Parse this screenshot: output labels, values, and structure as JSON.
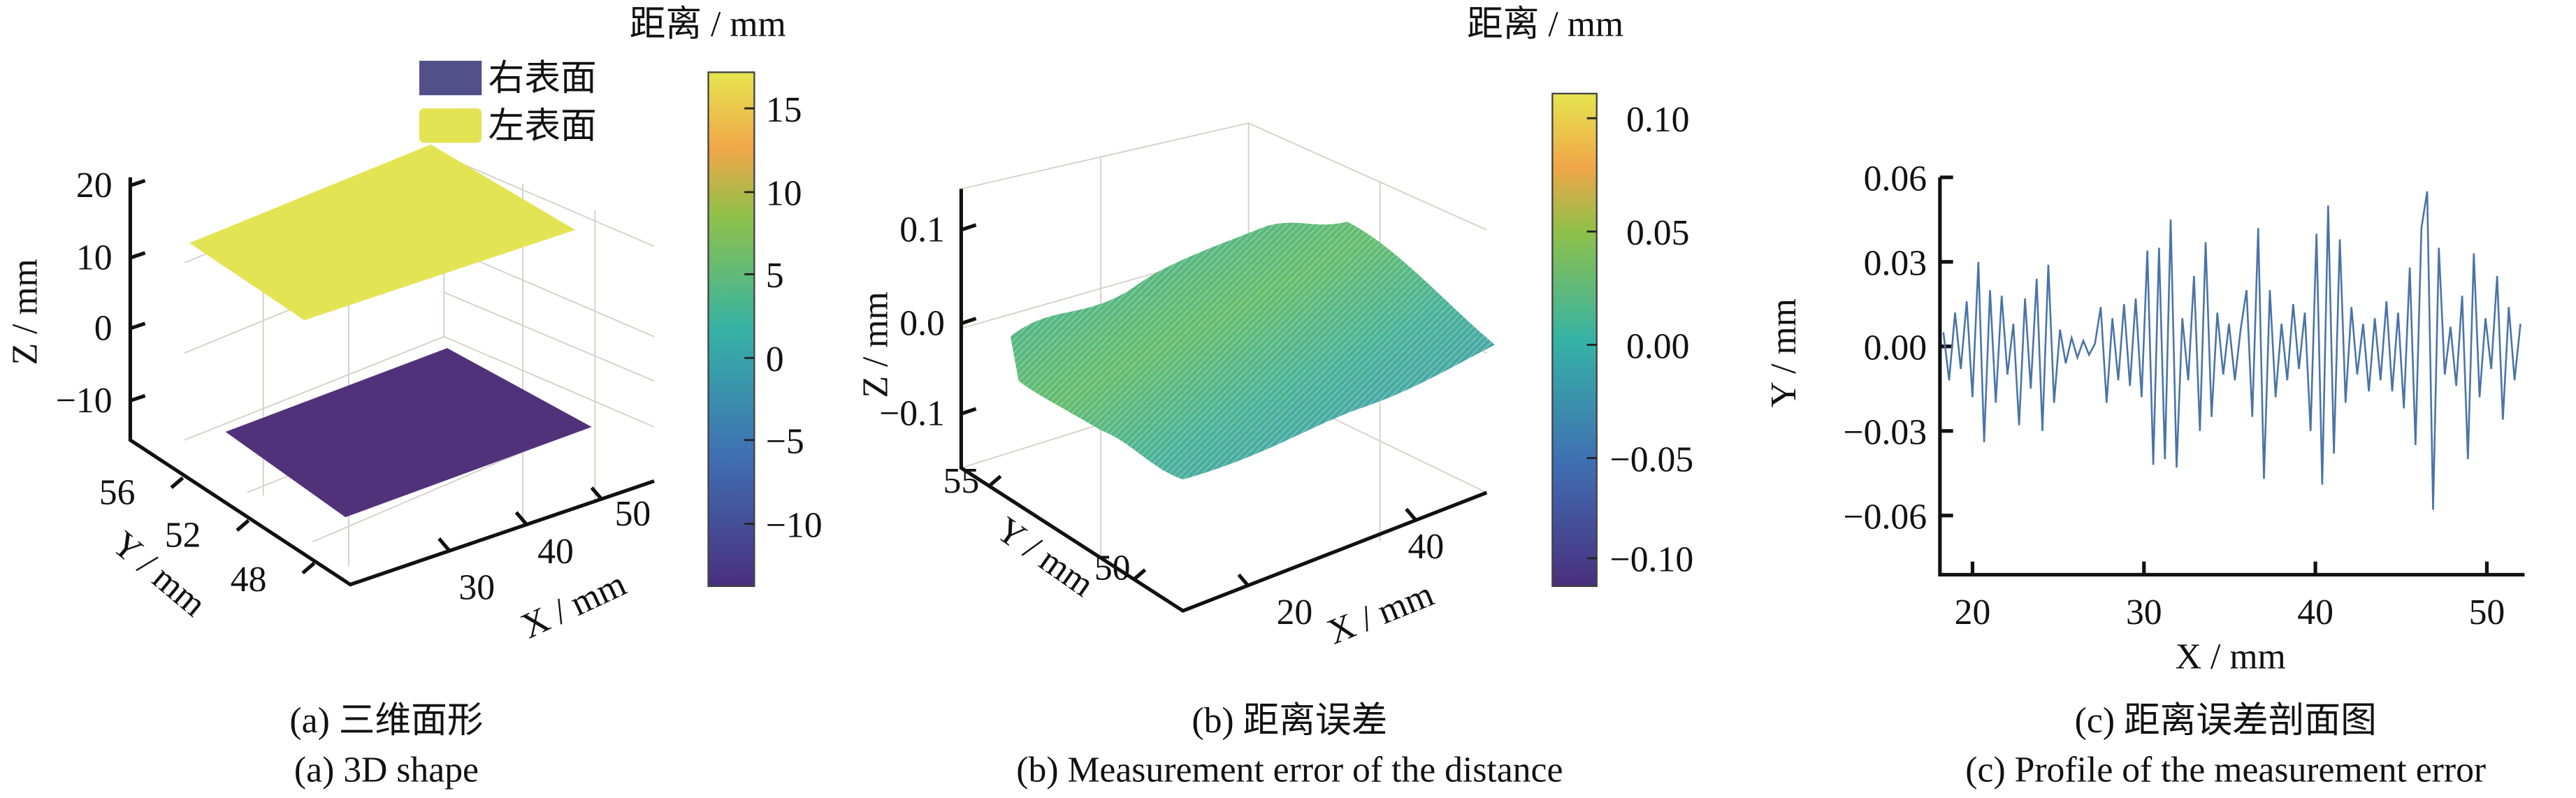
{
  "colors": {
    "right_surface": "#51327a",
    "left_surface": "#e3e453",
    "profile_line": "#4a74a8",
    "viridis": [
      "#440154",
      "#3b528b",
      "#21908d",
      "#5dc863",
      "#fde725"
    ],
    "parula": [
      "#3e26a8",
      "#2f6fe0",
      "#17b4b3",
      "#7cc94a",
      "#f5b83a",
      "#e9e330"
    ]
  },
  "chart_data": [
    {
      "type": "surface",
      "panel": "a",
      "title": "",
      "caption_cn": "(a) 三维面形",
      "caption_en": "(a) 3D shape",
      "xlabel": "X / mm",
      "ylabel": "Y / mm",
      "zlabel": "Z / mm",
      "x_ticks": [
        "30",
        "40",
        "50"
      ],
      "y_ticks": [
        "56",
        "52",
        "48"
      ],
      "z_ticks": [
        "20",
        "10",
        "0",
        "−10"
      ],
      "legend": [
        "右表面",
        "左表面"
      ],
      "legend_placement": "top-right",
      "series": [
        {
          "name": "右表面",
          "z": -12
        },
        {
          "name": "左表面",
          "z": 12
        }
      ],
      "colorbar": {
        "label": "距离 / mm",
        "ticks": [
          "15",
          "10",
          "5",
          "0",
          "−5",
          "−10"
        ],
        "range": [
          -13,
          17
        ]
      }
    },
    {
      "type": "surface",
      "panel": "b",
      "caption_cn": "(b) 距离误差",
      "caption_en": "(b) Measurement error of the distance",
      "xlabel": "X / mm",
      "ylabel": "Y / mm",
      "zlabel": "Z / mm",
      "x_ticks": [
        "20",
        "40"
      ],
      "y_ticks": [
        "55",
        "50"
      ],
      "z_ticks": [
        "0.1",
        "0.0",
        "−0.1"
      ],
      "zlim": [
        -0.12,
        0.12
      ],
      "colorbar": {
        "label": "距离 / mm",
        "ticks": [
          "0.10",
          "0.05",
          "0.00",
          "−0.05",
          "−0.10"
        ],
        "range": [
          -0.11,
          0.11
        ]
      }
    },
    {
      "type": "line",
      "panel": "c",
      "caption_cn": "(c) 距离误差剖面图",
      "caption_en": "(c) Profile of the measurement error",
      "xlabel": "X / mm",
      "ylabel": "Y / mm",
      "xlim": [
        18.1,
        52.2
      ],
      "ylim": [
        -0.081,
        0.06
      ],
      "x_ticks": [
        20,
        30,
        40,
        50
      ],
      "x_tick_labels": [
        "20",
        "30",
        "40",
        "50"
      ],
      "y_ticks": [
        0.06,
        0.03,
        0.0,
        -0.03,
        -0.06
      ],
      "y_tick_labels": [
        "0.06",
        "0.03",
        "0.00",
        "−0.03",
        "−0.06"
      ],
      "grid": false,
      "x_start": 18.3,
      "x_step": 0.34,
      "values": [
        0.005,
        -0.012,
        0.012,
        -0.008,
        0.016,
        -0.018,
        0.03,
        -0.034,
        0.02,
        -0.02,
        0.018,
        -0.01,
        0.008,
        -0.028,
        0.017,
        -0.015,
        0.024,
        -0.03,
        0.029,
        -0.02,
        0.006,
        -0.006,
        0.003,
        -0.004,
        0.002,
        -0.003,
        0.001,
        0.014,
        -0.02,
        0.01,
        -0.012,
        0.015,
        -0.014,
        0.017,
        -0.018,
        0.034,
        -0.042,
        0.035,
        -0.04,
        0.045,
        -0.043,
        0.01,
        -0.012,
        0.025,
        -0.03,
        0.037,
        -0.025,
        0.012,
        -0.01,
        0.008,
        -0.012,
        0.006,
        0.02,
        -0.025,
        0.042,
        -0.047,
        0.02,
        -0.018,
        0.008,
        -0.012,
        0.015,
        -0.008,
        0.012,
        -0.03,
        0.04,
        -0.049,
        0.05,
        -0.038,
        0.038,
        -0.02,
        0.014,
        -0.01,
        0.008,
        -0.016,
        0.01,
        -0.012,
        0.016,
        -0.016,
        0.012,
        -0.022,
        0.028,
        -0.035,
        0.042,
        0.055,
        -0.058,
        0.035,
        -0.01,
        0.007,
        -0.014,
        0.018,
        -0.04,
        0.033,
        -0.018,
        0.01,
        -0.008,
        0.025,
        -0.026,
        0.014,
        -0.012,
        0.008
      ]
    }
  ]
}
